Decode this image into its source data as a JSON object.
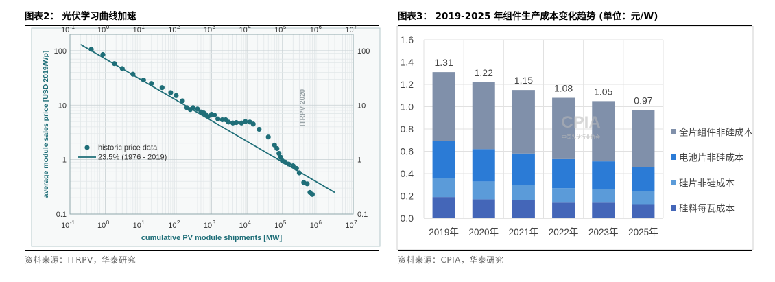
{
  "left": {
    "title": "图表2：  光伏学习曲线加速",
    "source": "资料来源：ITRPV，华泰研究",
    "chart_data": {
      "type": "scatter",
      "x_scale": "log",
      "y_scale": "log",
      "xlabel": "cumulative PV module shipments [MW]",
      "ylabel": "average module sales price [USD 2019/Wp]",
      "xlim": [
        0.1,
        10000000
      ],
      "ylim": [
        0.1,
        200
      ],
      "x_ticks": [
        {
          "v": 0.1,
          "b": "10",
          "e": "-1"
        },
        {
          "v": 1,
          "b": "10",
          "e": "0"
        },
        {
          "v": 10,
          "b": "10",
          "e": "1"
        },
        {
          "v": 100,
          "b": "10",
          "e": "2"
        },
        {
          "v": 1000,
          "b": "10",
          "e": "3"
        },
        {
          "v": 10000,
          "b": "10",
          "e": "4"
        },
        {
          "v": 100000,
          "b": "10",
          "e": "5"
        },
        {
          "v": 1000000,
          "b": "10",
          "e": "6"
        },
        {
          "v": 10000000,
          "b": "10",
          "e": "7"
        }
      ],
      "y_ticks": [
        {
          "v": 100,
          "label": "100"
        },
        {
          "v": 10,
          "label": "10"
        },
        {
          "v": 1,
          "label": "1"
        },
        {
          "v": 0.1,
          "label": "0.1"
        }
      ],
      "watermark": "ITRPV 2020",
      "grid": true,
      "legend_position": "lower-left",
      "series": [
        {
          "name": "historic price data",
          "kind": "points",
          "color": "#1f6e78",
          "points": [
            [
              0.4,
              106
            ],
            [
              0.85,
              85
            ],
            [
              1.8,
              58
            ],
            [
              3,
              47
            ],
            [
              6,
              37
            ],
            [
              12,
              29
            ],
            [
              20,
              25
            ],
            [
              40,
              21
            ],
            [
              70,
              17
            ],
            [
              100,
              15
            ],
            [
              150,
              12
            ],
            [
              200,
              9
            ],
            [
              250,
              8.3
            ],
            [
              300,
              9
            ],
            [
              400,
              8.5
            ],
            [
              500,
              7.5
            ],
            [
              600,
              7.2
            ],
            [
              700,
              6.7
            ],
            [
              800,
              6.2
            ],
            [
              1000,
              6.8
            ],
            [
              1200,
              6.6
            ],
            [
              1500,
              5.6
            ],
            [
              2000,
              5.4
            ],
            [
              2500,
              5.4
            ],
            [
              3000,
              4.9
            ],
            [
              4000,
              4.7
            ],
            [
              5000,
              4.8
            ],
            [
              7000,
              4.7
            ],
            [
              9000,
              5.0
            ],
            [
              12000,
              4.9
            ],
            [
              15000,
              4.5
            ],
            [
              22000,
              3.6
            ],
            [
              40000,
              2.6
            ],
            [
              60000,
              1.85
            ],
            [
              70000,
              1.6
            ],
            [
              80000,
              1.3
            ],
            [
              90000,
              1.1
            ],
            [
              100000,
              0.95
            ],
            [
              120000,
              0.9
            ],
            [
              150000,
              0.83
            ],
            [
              200000,
              0.77
            ],
            [
              250000,
              0.69
            ],
            [
              300000,
              0.57
            ],
            [
              400000,
              0.38
            ],
            [
              500000,
              0.36
            ],
            [
              600000,
              0.25
            ],
            [
              700000,
              0.23
            ]
          ]
        },
        {
          "name": "23.5% (1976 - 2019)",
          "kind": "line",
          "color": "#1f6e78",
          "points": [
            [
              0.2,
              130
            ],
            [
              3000000,
              0.25
            ]
          ]
        }
      ]
    }
  },
  "right": {
    "title": "图表3：  2019-2025 年组件生产成本变化趋势 (单位：元/W)",
    "source": "资料来源：CPIA，华泰研究",
    "chart_data": {
      "type": "bar",
      "stacked": true,
      "categories": [
        "2019年",
        "2020年",
        "2021年",
        "2022年",
        "2023年",
        "2025年"
      ],
      "totals": [
        "1.31",
        "1.22",
        "1.15",
        "1.08",
        "1.05",
        "0.97"
      ],
      "ylim": [
        0,
        1.6
      ],
      "y_ticks": [
        "0.0",
        "0.2",
        "0.4",
        "0.6",
        "0.8",
        "1.0",
        "1.2",
        "1.4",
        "1.6"
      ],
      "watermark": {
        "main": "CPIA",
        "sub": "中国光伏行业协会"
      },
      "legend_position": "right",
      "series": [
        {
          "name": "硅料每瓦成本",
          "color": "#4466b8",
          "values": [
            0.19,
            0.17,
            0.16,
            0.14,
            0.14,
            0.12
          ]
        },
        {
          "name": "硅片非硅成本",
          "color": "#5b9bd9",
          "values": [
            0.17,
            0.16,
            0.14,
            0.13,
            0.12,
            0.12
          ]
        },
        {
          "name": "电池片非硅成本",
          "color": "#2b7bd6",
          "values": [
            0.33,
            0.29,
            0.28,
            0.26,
            0.25,
            0.22
          ]
        },
        {
          "name": "全片组件非硅成本",
          "color": "#8090aa",
          "values": [
            0.62,
            0.6,
            0.57,
            0.55,
            0.54,
            0.51
          ]
        }
      ]
    }
  }
}
